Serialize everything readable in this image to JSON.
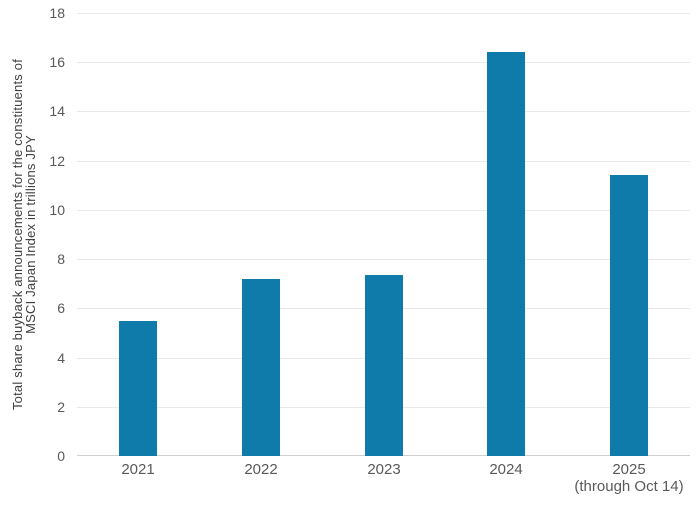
{
  "chart_data": {
    "type": "bar",
    "categories": [
      "2021",
      "2022",
      "2023",
      "2024",
      "2025"
    ],
    "category_sublabels": [
      "",
      "",
      "",
      "",
      "(through Oct 14)"
    ],
    "values": [
      5.5,
      7.2,
      7.35,
      16.4,
      11.4
    ],
    "title": "",
    "xlabel": "",
    "ylabel": "Total share buyback announcements for the constituents of MSCI Japan Index in trillions JPY",
    "ylabel_lines": [
      "Total share buyback announcements for the constituents of",
      "MSCI Japan Index in trillions JPY"
    ],
    "ylim": [
      0,
      18
    ],
    "yticks": [
      0,
      2,
      4,
      6,
      8,
      10,
      12,
      14,
      16,
      18
    ],
    "grid": true,
    "legend": "none",
    "colors": {
      "bar": "#0e7bab",
      "gridline": "#e9e9e9",
      "axis_line": "#cfcfcf",
      "tick_label": "#595959",
      "axis_title": "#404040",
      "background": "#ffffff"
    }
  }
}
